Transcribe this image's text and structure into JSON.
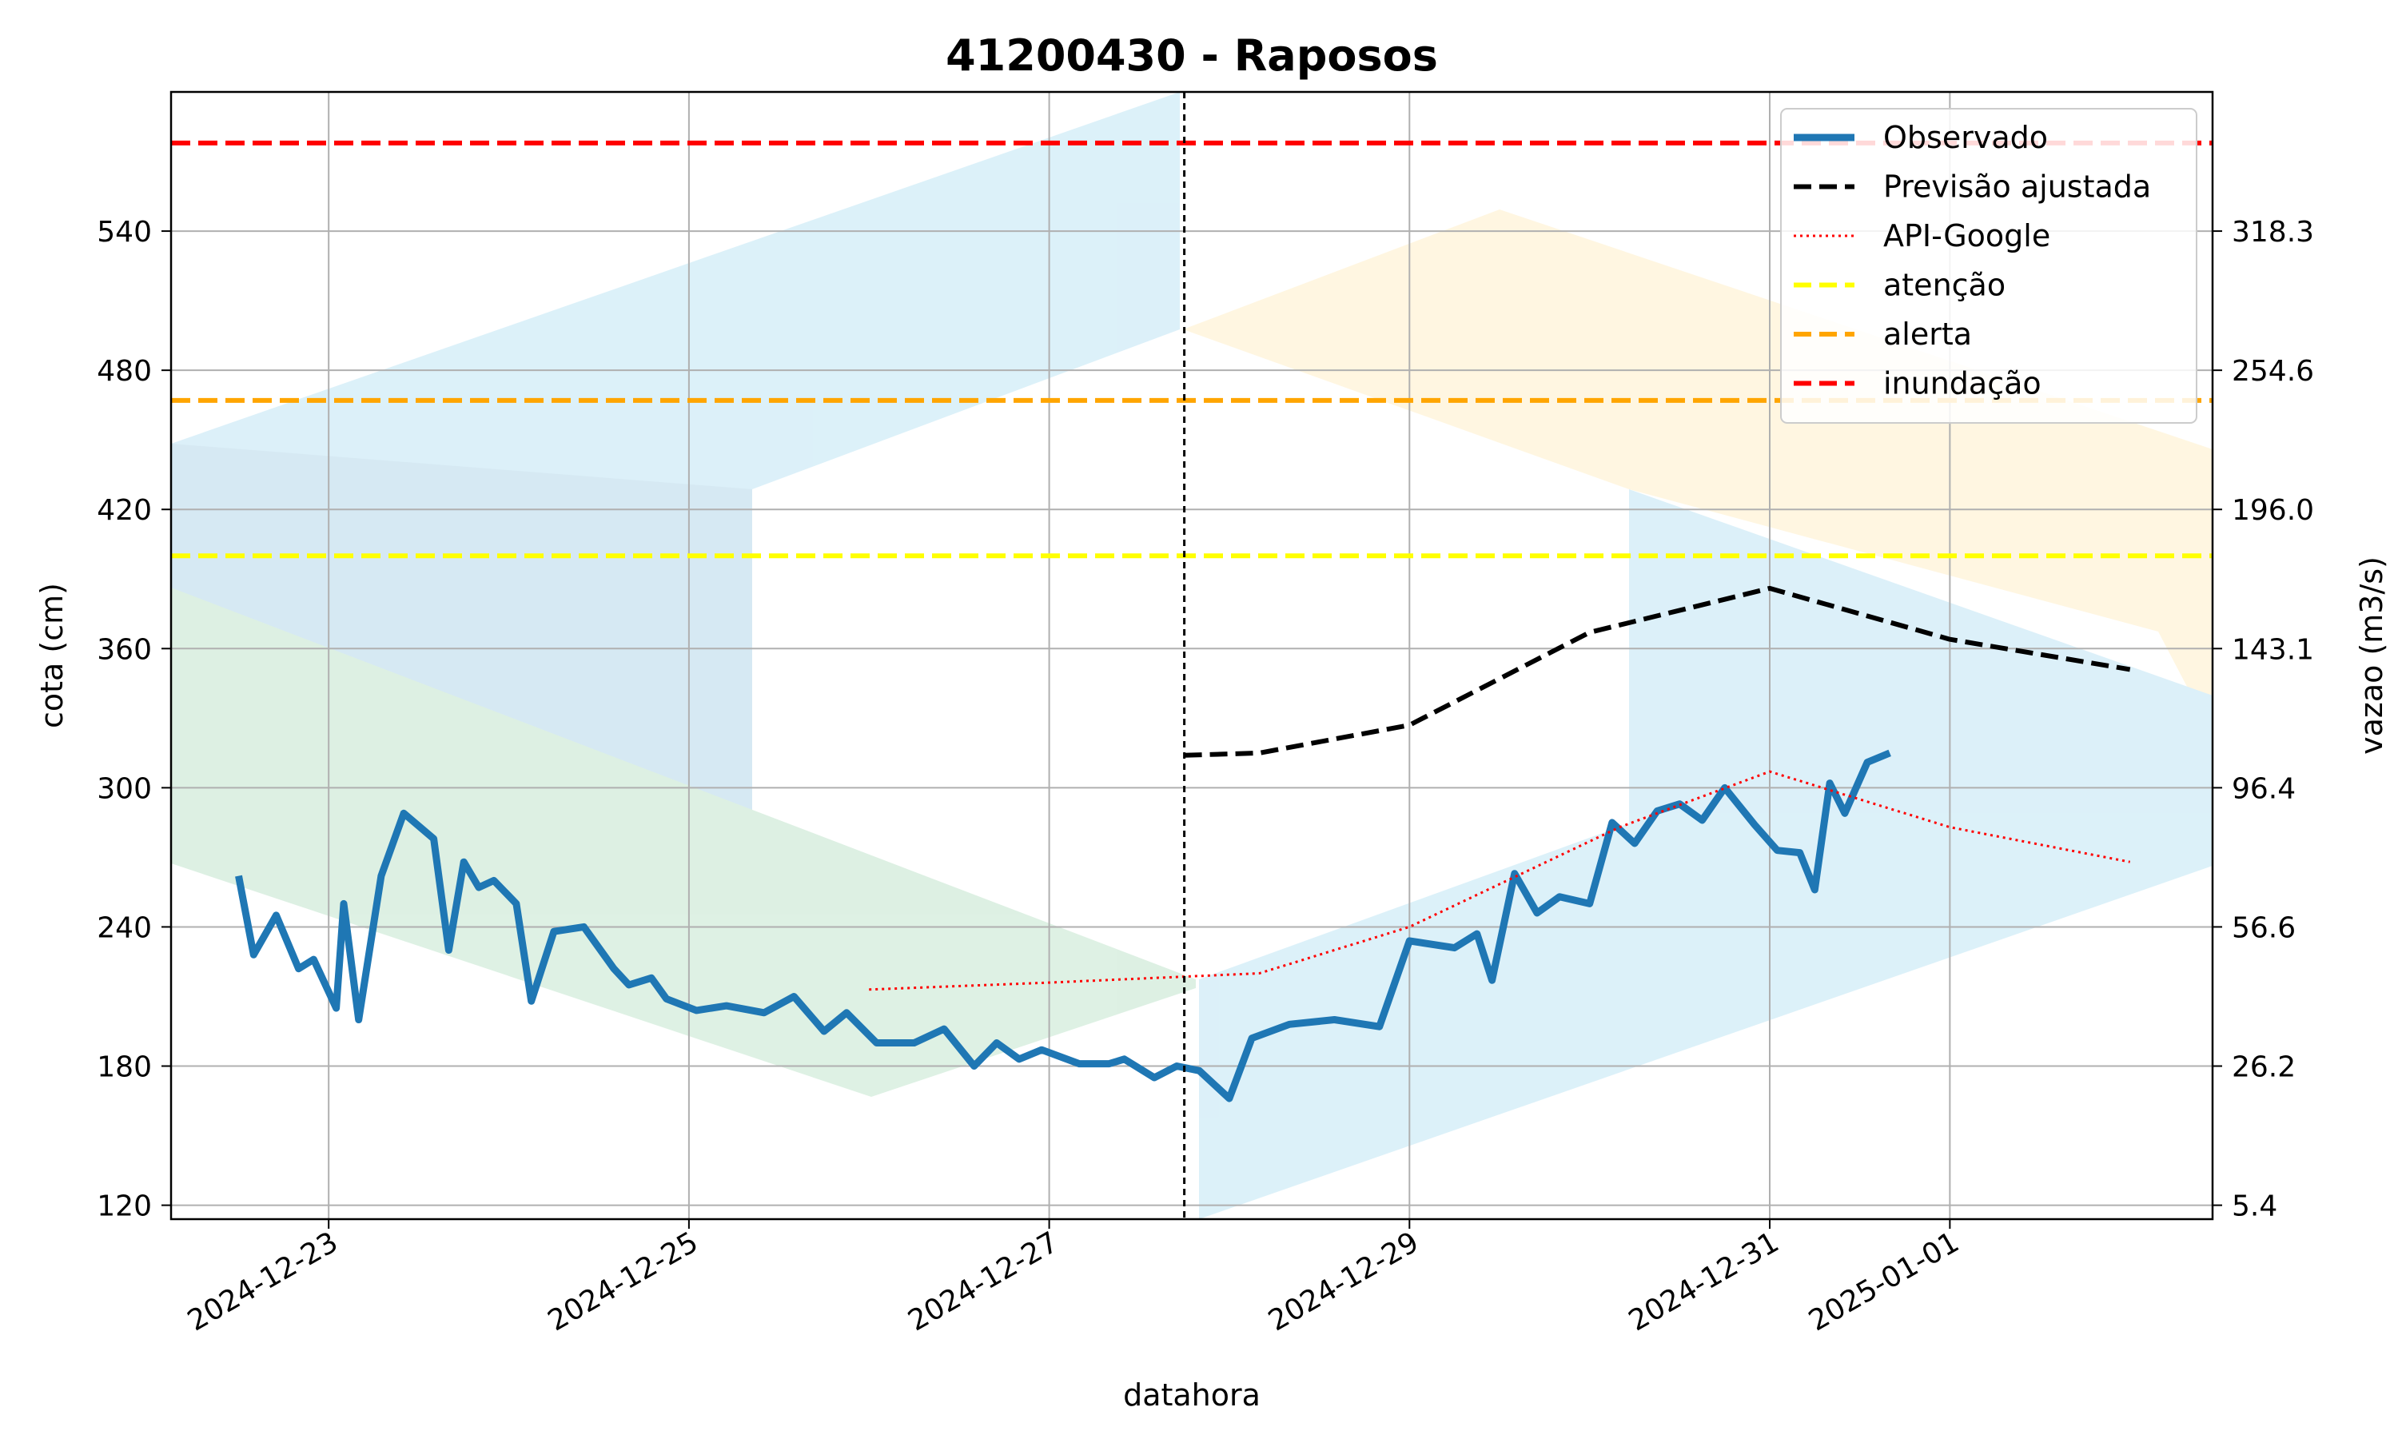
{
  "chart_data": {
    "type": "line",
    "title": "41200430 - Raposos",
    "xlabel": "datahora",
    "ylabel": "cota (cm)",
    "ylabel_right": "vazao (m3/s)",
    "x_ticks": [
      "2024-12-23",
      "2024-12-25",
      "2024-12-27",
      "2024-12-29",
      "2024-12-31",
      "2025-01-01"
    ],
    "y_ticks": [
      120,
      180,
      240,
      300,
      360,
      420,
      480,
      540
    ],
    "y_ticks_right": [
      "5.4",
      "26.2",
      "56.6",
      "96.4",
      "143.1",
      "196.0",
      "254.6",
      "318.3"
    ],
    "ylim": [
      114,
      600
    ],
    "xlim": [
      "2024-12-22T03:00",
      "2025-01-02T11:00"
    ],
    "forecast_start": "2024-12-27T18:00",
    "grid": true,
    "legend_position": "top-right",
    "thresholds": [
      {
        "name": "atenção",
        "value": 400,
        "color": "#ffff00"
      },
      {
        "name": "alerta",
        "value": 467,
        "color": "#ffa500"
      },
      {
        "name": "inundação",
        "value": 578,
        "color": "#ff0000"
      }
    ],
    "series": [
      {
        "name": "Observado",
        "color": "#1f77b4",
        "style": "solid",
        "points": [
          [
            "2024-12-22T12:00",
            262
          ],
          [
            "2024-12-22T14:00",
            228
          ],
          [
            "2024-12-22T17:00",
            245
          ],
          [
            "2024-12-22T20:00",
            222
          ],
          [
            "2024-12-22T22:00",
            226
          ],
          [
            "2024-12-23T01:00",
            205
          ],
          [
            "2024-12-23T02:00",
            250
          ],
          [
            "2024-12-23T04:00",
            200
          ],
          [
            "2024-12-23T07:00",
            262
          ],
          [
            "2024-12-23T10:00",
            289
          ],
          [
            "2024-12-23T14:00",
            278
          ],
          [
            "2024-12-23T16:00",
            230
          ],
          [
            "2024-12-23T18:00",
            268
          ],
          [
            "2024-12-23T20:00",
            257
          ],
          [
            "2024-12-23T22:00",
            260
          ],
          [
            "2024-12-24T01:00",
            250
          ],
          [
            "2024-12-24T03:00",
            208
          ],
          [
            "2024-12-24T06:00",
            238
          ],
          [
            "2024-12-24T10:00",
            240
          ],
          [
            "2024-12-24T14:00",
            222
          ],
          [
            "2024-12-24T16:00",
            215
          ],
          [
            "2024-12-24T19:00",
            218
          ],
          [
            "2024-12-24T21:00",
            209
          ],
          [
            "2024-12-25T01:00",
            204
          ],
          [
            "2024-12-25T05:00",
            206
          ],
          [
            "2024-12-25T10:00",
            203
          ],
          [
            "2024-12-25T14:00",
            210
          ],
          [
            "2024-12-25T18:00",
            195
          ],
          [
            "2024-12-25T21:00",
            203
          ],
          [
            "2024-12-26T01:00",
            190
          ],
          [
            "2024-12-26T06:00",
            190
          ],
          [
            "2024-12-26T10:00",
            196
          ],
          [
            "2024-12-26T14:00",
            180
          ],
          [
            "2024-12-26T17:00",
            190
          ],
          [
            "2024-12-26T20:00",
            183
          ],
          [
            "2024-12-26T23:00",
            187
          ],
          [
            "2024-12-27T04:00",
            181
          ],
          [
            "2024-12-27T08:00",
            181
          ],
          [
            "2024-12-27T10:00",
            183
          ],
          [
            "2024-12-27T14:00",
            175
          ],
          [
            "2024-12-27T17:00",
            180
          ],
          [
            "2024-12-27T20:00",
            178
          ],
          [
            "2024-12-28T00:00",
            166
          ],
          [
            "2024-12-28T03:00",
            192
          ],
          [
            "2024-12-28T08:00",
            198
          ],
          [
            "2024-12-28T14:00",
            200
          ],
          [
            "2024-12-28T20:00",
            197
          ],
          [
            "2024-12-29T00:00",
            234
          ],
          [
            "2024-12-29T06:00",
            231
          ],
          [
            "2024-12-29T09:00",
            237
          ],
          [
            "2024-12-29T11:00",
            217
          ],
          [
            "2024-12-29T14:00",
            263
          ],
          [
            "2024-12-29T17:00",
            246
          ],
          [
            "2024-12-29T20:00",
            253
          ],
          [
            "2024-12-30T00:00",
            250
          ],
          [
            "2024-12-30T03:00",
            285
          ],
          [
            "2024-12-30T06:00",
            276
          ],
          [
            "2024-12-30T09:00",
            290
          ],
          [
            "2024-12-30T12:00",
            293
          ],
          [
            "2024-12-30T15:00",
            286
          ],
          [
            "2024-12-30T18:00",
            300
          ],
          [
            "2024-12-30T22:00",
            284
          ],
          [
            "2024-12-31T01:00",
            273
          ],
          [
            "2024-12-31T04:00",
            272
          ],
          [
            "2024-12-31T06:00",
            256
          ],
          [
            "2024-12-31T08:00",
            302
          ],
          [
            "2024-12-31T10:00",
            289
          ],
          [
            "2024-12-31T13:00",
            311
          ],
          [
            "2024-12-31T16:00",
            315
          ]
        ]
      },
      {
        "name": "Previsão ajustada",
        "color": "#000000",
        "style": "dashed",
        "points": [
          [
            "2024-12-27T18:00",
            314
          ],
          [
            "2024-12-28T04:00",
            315
          ],
          [
            "2024-12-29T00:00",
            327
          ],
          [
            "2024-12-30T00:00",
            367
          ],
          [
            "2024-12-31T00:00",
            386
          ],
          [
            "2025-01-01T00:00",
            364
          ],
          [
            "2025-01-02T00:00",
            351
          ]
        ]
      },
      {
        "name": "API-Google",
        "color": "#ff0000",
        "style": "dotted",
        "points": [
          [
            "2024-12-26T00:00",
            213
          ],
          [
            "2024-12-27T00:00",
            216
          ],
          [
            "2024-12-28T04:00",
            220
          ],
          [
            "2024-12-29T00:00",
            240
          ],
          [
            "2024-12-30T04:00",
            283
          ],
          [
            "2024-12-31T00:00",
            307
          ],
          [
            "2025-01-01T00:00",
            283
          ],
          [
            "2025-01-02T00:00",
            268
          ]
        ]
      }
    ]
  }
}
